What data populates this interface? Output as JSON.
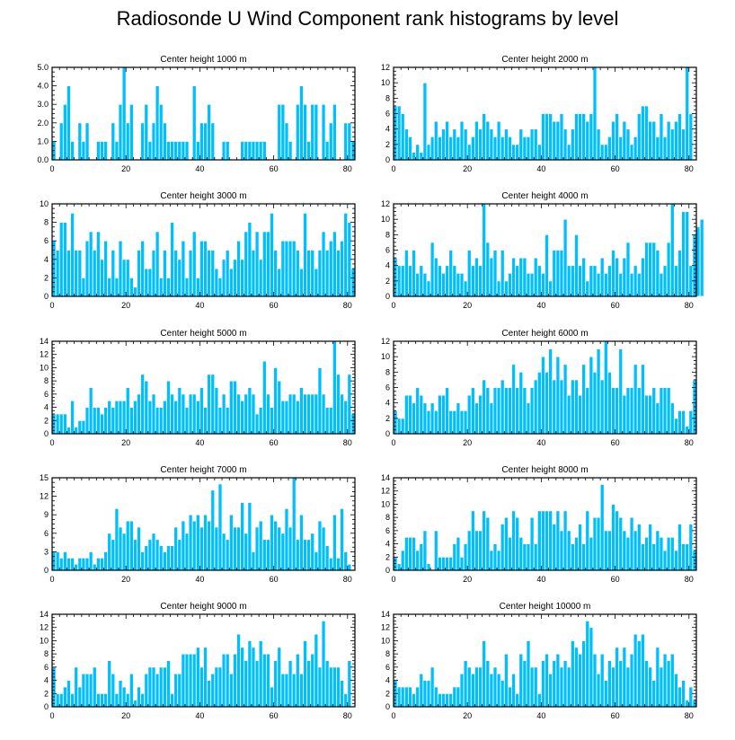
{
  "title": "Radiosonde U Wind Component rank histograms by level",
  "chart_data": [
    {
      "type": "bar",
      "title": "Center height 1000 m",
      "xlim": [
        0,
        82
      ],
      "ylim": [
        0,
        5
      ],
      "xticks": [
        0,
        20,
        40,
        60,
        80
      ],
      "yticks": [
        0,
        1,
        2,
        3,
        4,
        5
      ],
      "ytick_labels": [
        "0.0",
        "1.0",
        "2.0",
        "3.0",
        "4.0",
        "5.0"
      ],
      "values": [
        1,
        0,
        2,
        3,
        4,
        1,
        0,
        2,
        1,
        2,
        0,
        0,
        1,
        1,
        1,
        0,
        2,
        1,
        3,
        5,
        2,
        3,
        0,
        0,
        2,
        3,
        1,
        2,
        4,
        3,
        2,
        1,
        1,
        1,
        1,
        1,
        1,
        0,
        4,
        1,
        2,
        2,
        3,
        2,
        0,
        0,
        1,
        1,
        0,
        0,
        0,
        1,
        1,
        1,
        1,
        1,
        1,
        1,
        0,
        0,
        0,
        3,
        3,
        2,
        1,
        0,
        3,
        4,
        3,
        1,
        3,
        3,
        0,
        3,
        1,
        2,
        3,
        0,
        0,
        2,
        2,
        1
      ]
    },
    {
      "type": "bar",
      "title": "Center height 2000 m",
      "xlim": [
        0,
        82
      ],
      "ylim": [
        0,
        12
      ],
      "xticks": [
        0,
        20,
        40,
        60,
        80
      ],
      "yticks": [
        0,
        2,
        4,
        6,
        8,
        10,
        12
      ],
      "values": [
        7,
        7,
        6,
        4,
        3,
        1,
        2,
        1,
        10,
        2,
        3,
        5,
        3,
        4,
        5,
        3,
        4,
        3,
        5,
        4,
        2,
        3,
        5,
        4,
        6,
        5,
        4,
        3,
        5,
        3,
        4,
        3,
        2,
        2,
        4,
        3,
        3,
        4,
        4,
        2,
        6,
        6,
        6,
        5,
        5,
        6,
        4,
        2,
        4,
        6,
        6,
        6,
        5,
        6,
        12,
        4,
        2,
        2,
        3,
        5,
        6,
        3,
        5,
        4,
        2,
        3,
        6,
        7,
        7,
        5,
        5,
        3,
        6,
        3,
        5,
        4,
        5,
        6,
        4,
        12,
        6
      ]
    },
    {
      "type": "bar",
      "title": "Center height 3000 m",
      "xlim": [
        0,
        82
      ],
      "ylim": [
        0,
        10
      ],
      "xticks": [
        0,
        20,
        40,
        60,
        80
      ],
      "yticks": [
        0,
        2,
        4,
        6,
        8,
        10
      ],
      "values": [
        6,
        5,
        8,
        8,
        5,
        9,
        5,
        5,
        2,
        6,
        7,
        5,
        7,
        4,
        6,
        2,
        5,
        2,
        6,
        4,
        4,
        2,
        1,
        5,
        6,
        3,
        3,
        5,
        7,
        2,
        5,
        2,
        8,
        5,
        4,
        6,
        2,
        5,
        7,
        2,
        6,
        6,
        5,
        5,
        3,
        2,
        4,
        5,
        3,
        4,
        6,
        4,
        7,
        8,
        5,
        7,
        4,
        7,
        7,
        9,
        5,
        3,
        6,
        6,
        6,
        6,
        5,
        3,
        9,
        5,
        5,
        3,
        5,
        7,
        5,
        6,
        7,
        5,
        6,
        9,
        8,
        3
      ]
    },
    {
      "type": "bar",
      "title": "Center height 4000 m",
      "xlim": [
        0,
        82
      ],
      "ylim": [
        0,
        12
      ],
      "xticks": [
        0,
        20,
        40,
        60,
        80
      ],
      "yticks": [
        0,
        2,
        4,
        6,
        8,
        10,
        12
      ],
      "values": [
        5,
        4,
        4,
        6,
        4,
        6,
        3,
        4,
        3,
        2,
        7,
        5,
        4,
        3,
        4,
        6,
        4,
        3,
        3,
        2,
        6,
        4,
        5,
        4,
        12,
        7,
        5,
        6,
        2,
        6,
        2,
        3,
        5,
        4,
        5,
        5,
        3,
        3,
        5,
        4,
        3,
        8,
        2,
        6,
        6,
        6,
        10,
        4,
        4,
        8,
        4,
        5,
        2,
        4,
        4,
        3,
        5,
        3,
        4,
        6,
        5,
        3,
        5,
        7,
        3,
        4,
        3,
        5,
        7,
        7,
        7,
        6,
        3,
        4,
        7,
        12,
        4,
        6,
        11,
        11,
        4,
        8,
        9,
        10
      ]
    },
    {
      "type": "bar",
      "title": "Center height 5000 m",
      "xlim": [
        0,
        82
      ],
      "ylim": [
        0,
        14
      ],
      "xticks": [
        0,
        20,
        40,
        60,
        80
      ],
      "yticks": [
        0,
        2,
        4,
        6,
        8,
        10,
        12,
        14
      ],
      "values": [
        3,
        3,
        3,
        3,
        1,
        5,
        1,
        2,
        2,
        4,
        7,
        4,
        4,
        3,
        4,
        5,
        4,
        5,
        5,
        5,
        7,
        4,
        5,
        6,
        9,
        8,
        5,
        6,
        4,
        4,
        5,
        8,
        6,
        5,
        7,
        6,
        4,
        6,
        6,
        5,
        7,
        4,
        9,
        9,
        7,
        4,
        6,
        4,
        8,
        8,
        6,
        5,
        6,
        7,
        6,
        3,
        4,
        11,
        6,
        4,
        10,
        8,
        5,
        5,
        6,
        6,
        5,
        7,
        6,
        6,
        6,
        6,
        10,
        6,
        4,
        4,
        14,
        9,
        6,
        5,
        9,
        3
      ]
    },
    {
      "type": "bar",
      "title": "Center height 6000 m",
      "xlim": [
        0,
        82
      ],
      "ylim": [
        0,
        12
      ],
      "xticks": [
        0,
        20,
        40,
        60,
        80
      ],
      "yticks": [
        0,
        2,
        4,
        6,
        8,
        10,
        12
      ],
      "values": [
        3,
        2,
        2,
        5,
        5,
        4,
        6,
        5,
        4,
        3,
        4,
        3,
        5,
        5,
        6,
        3,
        3,
        4,
        3,
        3,
        5,
        6,
        4,
        5,
        7,
        6,
        4,
        6,
        6,
        7,
        6,
        6,
        9,
        6,
        8,
        6,
        4,
        6,
        7,
        8,
        10,
        8,
        11,
        7,
        10,
        7,
        9,
        5,
        7,
        7,
        5,
        9,
        6,
        10,
        8,
        11,
        7,
        12,
        8,
        6,
        6,
        11,
        5,
        6,
        6,
        9,
        6,
        9,
        5,
        5,
        6,
        4,
        6,
        6,
        6,
        4,
        2,
        3,
        3,
        1,
        3,
        7
      ]
    },
    {
      "type": "bar",
      "title": "Center height 7000 m",
      "xlim": [
        0,
        82
      ],
      "ylim": [
        0,
        15
      ],
      "xticks": [
        0,
        20,
        40,
        60,
        80
      ],
      "yticks": [
        0,
        3,
        6,
        9,
        12,
        15
      ],
      "values": [
        3,
        3,
        2,
        3,
        2,
        2,
        1,
        2,
        2,
        2,
        3,
        1,
        2,
        2,
        3,
        6,
        5,
        10,
        7,
        6,
        8,
        8,
        5,
        7,
        3,
        4,
        5,
        6,
        5,
        4,
        3,
        4,
        4,
        7,
        5,
        8,
        6,
        9,
        8,
        9,
        7,
        9,
        8,
        13,
        7,
        14,
        6,
        5,
        9,
        7,
        7,
        11,
        6,
        11,
        3,
        7,
        8,
        5,
        5,
        9,
        8,
        7,
        6,
        10,
        7,
        15,
        5,
        9,
        5,
        5,
        6,
        3,
        8,
        7,
        4,
        2,
        9,
        2,
        10,
        3,
        1
      ]
    },
    {
      "type": "bar",
      "title": "Center height 8000 m",
      "xlim": [
        0,
        82
      ],
      "ylim": [
        0,
        14
      ],
      "xticks": [
        0,
        20,
        40,
        60,
        80
      ],
      "yticks": [
        0,
        2,
        4,
        6,
        8,
        10,
        12,
        14
      ],
      "values": [
        2,
        1,
        3,
        5,
        5,
        5,
        3,
        4,
        6,
        1,
        0,
        6,
        2,
        2,
        2,
        2,
        4,
        5,
        2,
        4,
        6,
        9,
        6,
        6,
        9,
        8,
        3,
        4,
        3,
        7,
        8,
        5,
        9,
        8,
        5,
        4,
        4,
        8,
        4,
        9,
        9,
        9,
        9,
        7,
        9,
        6,
        9,
        6,
        4,
        5,
        7,
        4,
        9,
        5,
        8,
        8,
        13,
        6,
        6,
        10,
        9,
        8,
        6,
        5,
        8,
        6,
        7,
        4,
        5,
        7,
        4,
        6,
        5,
        3,
        5,
        5,
        3,
        7,
        4,
        4,
        7,
        3
      ]
    },
    {
      "type": "bar",
      "title": "Center height 9000 m",
      "xlim": [
        0,
        82
      ],
      "ylim": [
        0,
        14
      ],
      "xticks": [
        0,
        20,
        40,
        60,
        80
      ],
      "yticks": [
        0,
        2,
        4,
        6,
        8,
        10,
        12,
        14
      ],
      "values": [
        6,
        2,
        2,
        3,
        4,
        2,
        6,
        3,
        5,
        5,
        5,
        6,
        2,
        2,
        2,
        7,
        5,
        2,
        4,
        3,
        2,
        5,
        1,
        3,
        2,
        5,
        6,
        6,
        5,
        6,
        6,
        7,
        2,
        5,
        5,
        8,
        8,
        8,
        8,
        9,
        6,
        9,
        4,
        5,
        6,
        6,
        8,
        8,
        5,
        8,
        11,
        9,
        7,
        10,
        9,
        7,
        10,
        8,
        8,
        3,
        7,
        9,
        5,
        5,
        7,
        5,
        8,
        5,
        10,
        7,
        8,
        11,
        6,
        13,
        7,
        6,
        6,
        6,
        4,
        2,
        7
      ]
    },
    {
      "type": "bar",
      "title": "Center height 10000 m",
      "xlim": [
        0,
        82
      ],
      "ylim": [
        0,
        14
      ],
      "xticks": [
        0,
        20,
        40,
        60,
        80
      ],
      "yticks": [
        0,
        2,
        4,
        6,
        8,
        10,
        12,
        14
      ],
      "values": [
        4,
        3,
        3,
        3,
        3,
        2,
        3,
        5,
        4,
        4,
        6,
        3,
        2,
        2,
        2,
        2,
        3,
        3,
        5,
        7,
        6,
        5,
        6,
        6,
        10,
        7,
        5,
        6,
        5,
        4,
        8,
        3,
        5,
        2,
        8,
        7,
        10,
        6,
        6,
        2,
        7,
        8,
        5,
        7,
        8,
        6,
        7,
        6,
        10,
        9,
        8,
        10,
        13,
        12,
        8,
        5,
        8,
        4,
        7,
        6,
        9,
        7,
        9,
        6,
        8,
        11,
        10,
        11,
        7,
        6,
        4,
        9,
        6,
        8,
        7,
        8,
        5,
        3,
        4,
        1,
        3,
        1
      ]
    }
  ],
  "colors": {
    "bar_fill": "#00bfff",
    "bar_edge": "#ffffff",
    "axis": "#000000"
  }
}
